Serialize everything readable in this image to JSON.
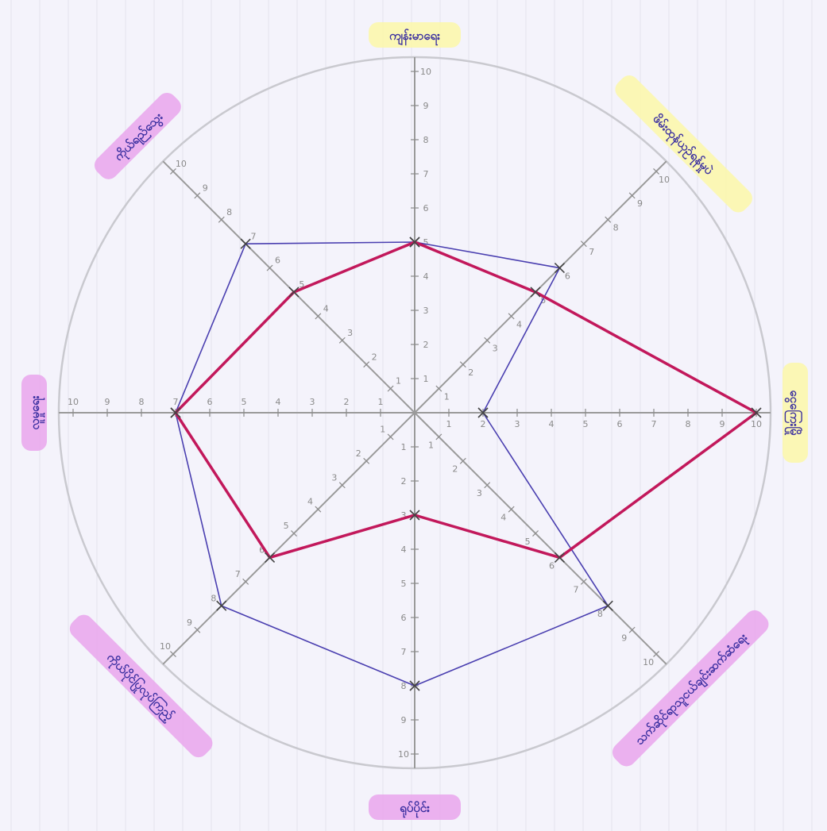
{
  "chart_data": {
    "type": "radar",
    "title": "",
    "categories": [
      "ကျန်းမာရေး",
      "ဖိမ်းထုန်ယှဉ်ရန်မှုပဲ",
      "ငွေကြေးမြို",
      "သက်ဆိုင်ရာသူငယ်ချင်းဆက်ဆံရေး",
      "ရုပ်ပိုင်း",
      "ကိုယ်ပိုင်ပြုလုပ်ကြည့်",
      "လူမှုရေး",
      "ကိုယ်ရည်သွေး"
    ],
    "axis_max": 10,
    "ticks": [
      1,
      2,
      3,
      4,
      5,
      6,
      7,
      8,
      9,
      10
    ],
    "grid": true,
    "series": [
      {
        "values": [
          5,
          6,
          2,
          8,
          8,
          8,
          7,
          7
        ],
        "color": "#4a3fb0"
      },
      {
        "values": [
          5,
          5,
          10,
          6,
          3,
          6,
          7,
          5
        ],
        "color": "#c2185b"
      }
    ],
    "label_highlights": [
      "#fbf7a8",
      "#fbf7a8",
      "#fbf7a8",
      "#e9a5ec",
      "#e9a5ec",
      "#e9a5ec",
      "#e9a5ec",
      "#e9a5ec"
    ],
    "label_color": "#3a2fa0"
  }
}
